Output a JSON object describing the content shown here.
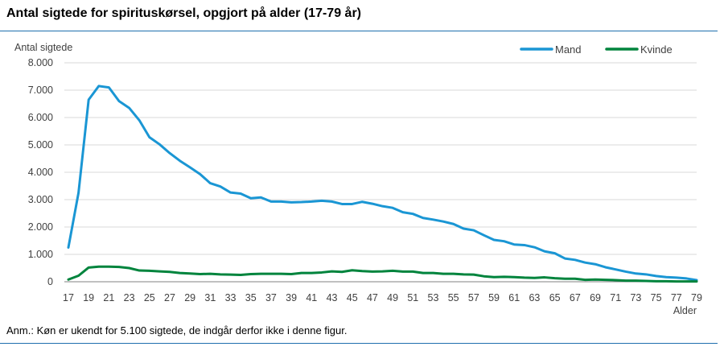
{
  "title": "Antal sigtede for spirituskørsel, opgjort på alder (17-79 år)",
  "note": "Anm.: Køn er ukendt for 5.100 sigtede, de indgår derfor ikke i denne figur.",
  "chart_data": {
    "type": "line",
    "title": "Antal sigtede for spirituskørsel, opgjort på alder (17-79 år)",
    "ylabel": "Antal sigtede",
    "xlabel": "Alder",
    "ylim": [
      0,
      8000
    ],
    "y_ticks": [
      0,
      1000,
      2000,
      3000,
      4000,
      5000,
      6000,
      7000,
      8000
    ],
    "y_tick_labels": [
      "0",
      "1.000",
      "2.000",
      "3.000",
      "4.000",
      "5.000",
      "6.000",
      "7.000",
      "8.000"
    ],
    "x_tick_labels": [
      "17",
      "19",
      "21",
      "23",
      "25",
      "27",
      "29",
      "31",
      "33",
      "35",
      "37",
      "39",
      "41",
      "43",
      "45",
      "47",
      "49",
      "51",
      "53",
      "55",
      "57",
      "59",
      "61",
      "63",
      "65",
      "67",
      "69",
      "71",
      "73",
      "75",
      "77",
      "79"
    ],
    "grid": true,
    "legend_position": "top-right",
    "x": [
      17,
      18,
      19,
      20,
      21,
      22,
      23,
      24,
      25,
      26,
      27,
      28,
      29,
      30,
      31,
      32,
      33,
      34,
      35,
      36,
      37,
      38,
      39,
      40,
      41,
      42,
      43,
      44,
      45,
      46,
      47,
      48,
      49,
      50,
      51,
      52,
      53,
      54,
      55,
      56,
      57,
      58,
      59,
      60,
      61,
      62,
      63,
      64,
      65,
      66,
      67,
      68,
      69,
      70,
      71,
      72,
      73,
      74,
      75,
      76,
      77,
      78,
      79
    ],
    "series": [
      {
        "name": "Mand",
        "color": "#1a96d4",
        "values": [
          1250,
          3250,
          6650,
          7150,
          7100,
          6600,
          6350,
          5900,
          5280,
          5020,
          4700,
          4420,
          4180,
          3930,
          3600,
          3480,
          3260,
          3220,
          3050,
          3080,
          2930,
          2930,
          2900,
          2910,
          2930,
          2960,
          2930,
          2840,
          2840,
          2920,
          2850,
          2760,
          2700,
          2540,
          2480,
          2330,
          2270,
          2200,
          2110,
          1940,
          1880,
          1700,
          1530,
          1480,
          1360,
          1340,
          1260,
          1110,
          1040,
          850,
          800,
          700,
          640,
          530,
          450,
          370,
          300,
          270,
          210,
          170,
          150,
          120,
          60
        ]
      },
      {
        "name": "Kvinde",
        "color": "#00843d",
        "values": [
          80,
          220,
          520,
          550,
          550,
          540,
          500,
          410,
          400,
          380,
          360,
          320,
          300,
          280,
          290,
          270,
          260,
          250,
          280,
          290,
          290,
          290,
          280,
          320,
          320,
          340,
          380,
          360,
          420,
          390,
          370,
          380,
          400,
          370,
          370,
          320,
          320,
          290,
          290,
          270,
          260,
          200,
          170,
          180,
          170,
          150,
          140,
          160,
          130,
          110,
          110,
          70,
          80,
          70,
          60,
          40,
          40,
          30,
          20,
          20,
          10,
          10,
          10
        ]
      }
    ]
  }
}
